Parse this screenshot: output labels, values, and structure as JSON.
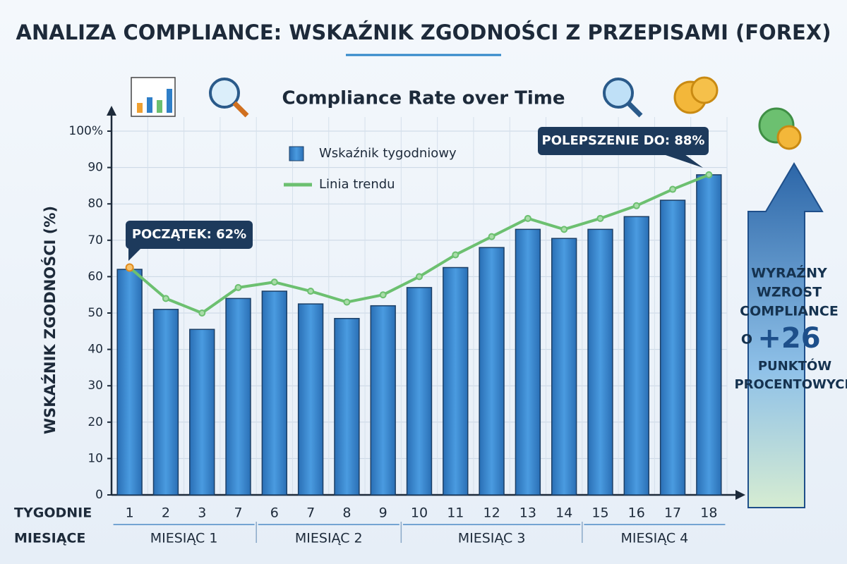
{
  "chart_data": {
    "type": "bar",
    "title": "ANALIZA COMPLIANCE: WSKAŹNIK ZGODNOŚCI Z PRZEPISAMI (FOREX)",
    "subtitle": "Compliance Rate over Time",
    "y_label": "WSKAŹNIK ZGODNOŚCI (%)",
    "x_row_labels": [
      "TYGODNIE",
      "MIESIĄCE"
    ],
    "categories": [
      "1",
      "2",
      "3",
      "7",
      "6",
      "7",
      "8",
      "9",
      "10",
      "11",
      "12",
      "13",
      "14",
      "15",
      "16",
      "17",
      "18"
    ],
    "month_groups": [
      "MIESIĄC 1",
      "MIESIĄC 2",
      "MIESIĄC 3",
      "MIESIĄC 4"
    ],
    "series": [
      {
        "name": "Wskaźnik tygodniowy",
        "color": "#2f7fc8",
        "type": "bar",
        "values": [
          62,
          51,
          45.5,
          54,
          56,
          52.5,
          48.5,
          52,
          57,
          62.5,
          68,
          73,
          70.5,
          73,
          76.5,
          81,
          88
        ]
      },
      {
        "name": "Linia trendu",
        "color": "#6cc070",
        "type": "line",
        "values": [
          62.5,
          54,
          50,
          57,
          58.5,
          56,
          53,
          55,
          60,
          66,
          71,
          76,
          73,
          76,
          79.5,
          84,
          88
        ]
      }
    ],
    "ylim": [
      0,
      100
    ],
    "yticks": [
      0,
      10,
      20,
      30,
      40,
      50,
      60,
      70,
      80,
      90,
      {
        "value": 100,
        "label": "100%"
      }
    ],
    "grid": true,
    "annotations": [
      "POCZĄTEK: 62%",
      "POLEPSZENIE DO: 88%"
    ],
    "side_note": {
      "lines": [
        "WYRAŹNY",
        "WZROST",
        "COMPLIANCE"
      ],
      "prefix": "O",
      "highlight": "+26",
      "tail": [
        "PUNKTÓW",
        "PROCENTOWYCH"
      ]
    }
  }
}
